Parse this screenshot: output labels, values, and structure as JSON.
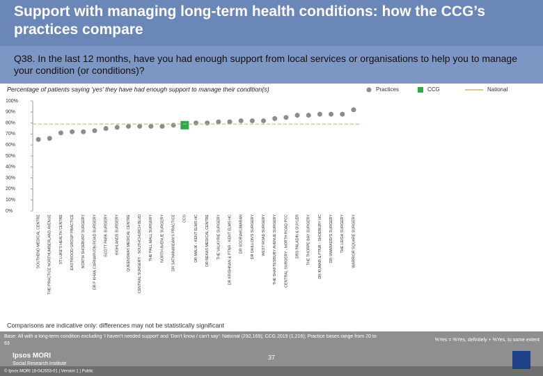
{
  "header": {
    "title": "Support with managing long-term health conditions: how the CCG’s practices compare",
    "question": "Q38. In the last 12 months, have you had enough support from local services or organisations to help you to manage your condition (or conditions)?"
  },
  "chart_data": {
    "type": "scatter",
    "subtitle": "Percentage of patients saying ‘yes’ they have had enough support to manage their condition(s)",
    "categories": [
      "SOUTHEND MEDICAL CENTRE",
      "THE PRACTICE NORTHUMBERLAND AVENUE",
      "ST LUKE'S HEALTH CENTRE",
      "EASTWOOD GROUP PRACTICE",
      "NORTH SHOEBURY SURGERY",
      "DR F KHAN CARNARVON ROAD SURGERY",
      "SCOTT PARK SURGERY",
      "HIGHLANDS SURGERY",
      "QUEENSWAY MEDICAL CENTRE",
      "CENTRAL SURGERY - SOUTHCHURCH BLVD",
      "THE PALL MALL SURGERY",
      "NORTH AVENUE SURGERY",
      "DR SATHANANDAN'S PRACTICE",
      "CCG",
      "DR MALIK - KENT ELMS HC",
      "DR BEKAS MEDICAL CENTRE",
      "THE VALKYRIE SURGERY",
      "DR KRISHNAN & PTNR - KENT ELMS HC",
      "DR SOORIAKUMARAN",
      "DR DHILLON'S SURGERY",
      "WEST ROAD SURGERY",
      "THE SHAFTESBURY AVENUE SURGERY",
      "CENTRAL SURGERY - NORTH ROAD PCC",
      "DRS PALADIN & GUYLER",
      "THE THORPE BAY SURGERY",
      "DR KUMAR & PTNR - SHOEBURY HC",
      "DR UMARADDI'S SURGERY",
      "THE LEIGH SURGERY",
      "WARRIOR SQUARE SURGERY"
    ],
    "series": [
      {
        "name": "Practices",
        "color": "#8c8c8c",
        "marker": "circle",
        "values": [
          65,
          66,
          71,
          72,
          72,
          73,
          75,
          76,
          77,
          77,
          77,
          77,
          78,
          null,
          80,
          80,
          81,
          81,
          82,
          82,
          82,
          84,
          85,
          87,
          87,
          88,
          88,
          88,
          92
        ]
      },
      {
        "name": "CCG",
        "color": "#2ea84a",
        "marker": "square",
        "values": [
          null,
          null,
          null,
          null,
          null,
          null,
          null,
          null,
          null,
          null,
          null,
          null,
          null,
          78,
          null,
          null,
          null,
          null,
          null,
          null,
          null,
          null,
          null,
          null,
          null,
          null,
          null,
          null,
          null
        ]
      },
      {
        "name": "National",
        "color": "#c8b46a",
        "marker": "line",
        "value": 79
      }
    ],
    "ylim": [
      0,
      100
    ],
    "yticks": [
      {
        "value": 0,
        "label": "0%"
      },
      {
        "value": 10,
        "label": "10%"
      },
      {
        "value": 20,
        "label": "20%"
      },
      {
        "value": 30,
        "label": "30%"
      },
      {
        "value": 40,
        "label": "40%"
      },
      {
        "value": 50,
        "label": "50%"
      },
      {
        "value": 60,
        "label": "60%"
      },
      {
        "value": 70,
        "label": "70%"
      },
      {
        "value": 80,
        "label": "80%"
      },
      {
        "value": 90,
        "label": "90%"
      },
      {
        "value": 100,
        "label": "100%"
      }
    ],
    "grid": false
  },
  "footer": {
    "note": "Comparisons are indicative only: differences may not be statistically significant",
    "base": "Base: All with a long-term condition excluding ‘I haven’t needed support’ and ‘Don’t know / can’t say’: National (292,169); CCG 2019 (1,216); Practice bases range from 20 to 63",
    "definition": "%Yes = %Yes, definitely + %Yes, to some extent",
    "page": "37",
    "brand": "Ipsos MORI",
    "institute": "Social Research Institute",
    "copyright": "© Ipsos MORI    18-042653-01 | Version 1 | Public"
  }
}
